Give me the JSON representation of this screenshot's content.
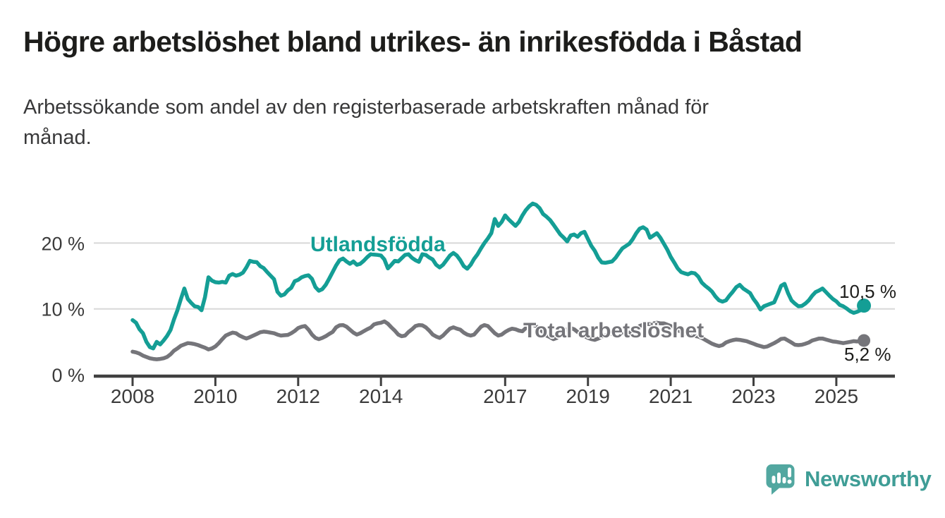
{
  "header": {
    "title": "Högre arbetslöshet bland utrikes- än inrikesfödda i Båstad",
    "subtitle": "Arbetssökande som andel av den registerbaserade arbetskraften månad för månad."
  },
  "chart_data": {
    "type": "line",
    "title": "Högre arbetslöshet bland utrikes- än inrikesfödda i Båstad",
    "subtitle": "Arbetssökande som andel av den registerbaserade arbetskraften månad för månad.",
    "x_unit": "decimal_year_monthly",
    "x_start": 2008.0,
    "x_step": 0.0833333,
    "x_end": 2025.6667,
    "ylim": [
      0,
      27.5
    ],
    "grid": "horizontal",
    "grid_color": "#d8d8d8",
    "axis_color": "#404040",
    "axis_text_color": "#3b3b3b",
    "x_tick_years": [
      2008,
      2010,
      2012,
      2014,
      2017,
      2019,
      2021,
      2023,
      2025
    ],
    "x_tick_labels": [
      "2008",
      "2010",
      "2012",
      "2014",
      "2017",
      "2019",
      "2021",
      "2023",
      "2025"
    ],
    "y_ticks": [
      {
        "value": 0,
        "label": "0 %"
      },
      {
        "value": 10,
        "label": "10 %"
      },
      {
        "value": 20,
        "label": "20 %"
      }
    ],
    "series": [
      {
        "name": "Utlandsfödda",
        "color": "#149e95",
        "end_label": "10,5 %",
        "end_value": 10.5,
        "values": [
          8.3,
          7.9,
          6.9,
          6.3,
          5.0,
          4.2,
          4.0,
          5.0,
          4.6,
          5.2,
          5.9,
          6.8,
          8.4,
          9.8,
          11.5,
          13.1,
          11.5,
          10.9,
          10.4,
          10.3,
          9.8,
          11.8,
          14.8,
          14.3,
          14.05,
          14.0,
          14.1,
          14.0,
          15.05,
          15.3,
          15.05,
          15.2,
          15.5,
          16.3,
          17.3,
          17.15,
          17.1,
          16.5,
          16.2,
          15.6,
          15.05,
          14.5,
          12.6,
          12.0,
          12.2,
          12.8,
          13.2,
          14.2,
          14.4,
          14.8,
          15.0,
          15.1,
          14.55,
          13.3,
          12.75,
          13.0,
          13.65,
          14.6,
          15.6,
          16.6,
          17.4,
          17.65,
          17.2,
          16.85,
          17.2,
          16.7,
          16.85,
          17.3,
          17.85,
          18.3,
          18.25,
          18.2,
          18.1,
          17.5,
          16.15,
          16.7,
          17.3,
          17.2,
          17.7,
          18.2,
          18.3,
          17.75,
          17.4,
          17.15,
          18.3,
          18.2,
          17.8,
          17.5,
          16.7,
          16.3,
          16.7,
          17.4,
          18.1,
          18.5,
          18.1,
          17.4,
          16.5,
          16.1,
          16.7,
          17.6,
          18.3,
          19.2,
          20.0,
          20.7,
          21.5,
          23.65,
          22.6,
          23.2,
          24.2,
          23.6,
          23.1,
          22.6,
          23.2,
          24.2,
          25.0,
          25.6,
          26.0,
          25.8,
          25.3,
          24.4,
          24.0,
          23.5,
          22.8,
          22.05,
          21.3,
          20.8,
          20.25,
          21.15,
          21.3,
          20.95,
          21.5,
          21.7,
          20.6,
          19.55,
          18.8,
          17.75,
          17.05,
          17.0,
          17.1,
          17.2,
          17.75,
          18.5,
          19.2,
          19.55,
          19.9,
          20.6,
          21.5,
          22.2,
          22.4,
          22.05,
          20.8,
          21.15,
          21.5,
          20.8,
          19.9,
          19.0,
          17.9,
          17.05,
          16.15,
          15.6,
          15.4,
          15.25,
          15.5,
          15.4,
          14.9,
          14.0,
          13.5,
          13.1,
          12.6,
          11.85,
          11.3,
          11.1,
          11.3,
          12.0,
          12.6,
          13.3,
          13.65,
          13.1,
          12.75,
          12.4,
          11.5,
          10.8,
          9.9,
          10.4,
          10.6,
          10.8,
          11.0,
          12.2,
          13.5,
          13.8,
          12.4,
          11.3,
          10.8,
          10.4,
          10.45,
          10.8,
          11.3,
          12.0,
          12.55,
          12.8,
          13.1,
          12.55,
          12.0,
          11.5,
          11.15,
          10.6,
          10.4,
          10.05,
          9.65,
          9.4,
          9.55,
          9.8,
          10.5
        ]
      },
      {
        "name": "Total arbetslöshet",
        "color": "#75757a",
        "end_label": "5,2 %",
        "end_value": 5.2,
        "values": [
          3.5,
          3.4,
          3.2,
          2.9,
          2.7,
          2.5,
          2.4,
          2.35,
          2.4,
          2.5,
          2.7,
          3.1,
          3.65,
          4.0,
          4.4,
          4.6,
          4.8,
          4.75,
          4.65,
          4.5,
          4.3,
          4.1,
          3.85,
          4.0,
          4.3,
          4.8,
          5.4,
          5.95,
          6.2,
          6.4,
          6.3,
          5.95,
          5.7,
          5.5,
          5.7,
          5.95,
          6.2,
          6.45,
          6.55,
          6.5,
          6.4,
          6.3,
          6.1,
          5.95,
          6.0,
          6.05,
          6.3,
          6.65,
          7.1,
          7.3,
          7.4,
          6.85,
          6.1,
          5.6,
          5.4,
          5.6,
          5.85,
          6.2,
          6.5,
          7.2,
          7.5,
          7.55,
          7.3,
          6.85,
          6.4,
          6.1,
          6.3,
          6.6,
          6.9,
          7.15,
          7.65,
          7.8,
          7.9,
          8.1,
          7.75,
          7.2,
          6.7,
          6.1,
          5.85,
          5.95,
          6.5,
          6.9,
          7.4,
          7.55,
          7.5,
          7.2,
          6.7,
          6.1,
          5.8,
          5.6,
          5.95,
          6.5,
          7.0,
          7.2,
          7.0,
          6.85,
          6.4,
          6.1,
          5.95,
          6.1,
          6.7,
          7.3,
          7.55,
          7.4,
          6.85,
          6.3,
          5.95,
          6.1,
          6.5,
          6.8,
          7.0,
          6.9,
          6.7,
          6.6,
          7.1,
          7.55,
          7.6,
          7.4,
          6.9,
          6.5,
          5.95,
          5.7,
          5.4,
          5.6,
          6.1,
          6.55,
          6.9,
          7.1,
          6.9,
          6.5,
          6.1,
          5.85,
          5.6,
          5.4,
          5.3,
          5.5,
          5.8,
          5.95,
          6.1,
          6.3,
          6.5,
          6.55,
          6.4,
          6.2,
          6.4,
          6.5,
          7.0,
          7.4,
          7.6,
          7.7,
          7.7,
          7.8,
          7.9,
          7.8,
          7.8,
          7.6,
          7.4,
          7.1,
          6.8,
          6.5,
          6.3,
          6.1,
          6.0,
          5.9,
          5.8,
          5.6,
          5.3,
          5.0,
          4.7,
          4.5,
          4.35,
          4.5,
          4.9,
          5.1,
          5.25,
          5.35,
          5.3,
          5.2,
          5.1,
          4.9,
          4.7,
          4.5,
          4.35,
          4.2,
          4.3,
          4.55,
          4.8,
          5.1,
          5.45,
          5.5,
          5.2,
          4.9,
          4.55,
          4.5,
          4.55,
          4.7,
          4.9,
          5.2,
          5.35,
          5.5,
          5.5,
          5.35,
          5.2,
          5.05,
          5.0,
          4.9,
          4.8,
          4.9,
          5.0,
          5.1,
          5.05,
          5.1,
          5.2
        ]
      }
    ]
  },
  "branding": {
    "logo_text": "Newsworthy",
    "icon": "newsworthy-chart-bubble-icon",
    "icon_color": "#52a7a0",
    "text_color": "#3f9d96"
  }
}
